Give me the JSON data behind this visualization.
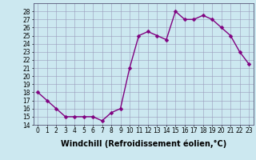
{
  "x": [
    0,
    1,
    2,
    3,
    4,
    5,
    6,
    7,
    8,
    9,
    10,
    11,
    12,
    13,
    14,
    15,
    16,
    17,
    18,
    19,
    20,
    21,
    22,
    23
  ],
  "y": [
    18,
    17,
    16,
    15,
    15,
    15,
    15,
    14.5,
    15.5,
    16,
    21,
    25,
    25.5,
    25,
    24.5,
    28,
    27,
    27,
    27.5,
    27,
    26,
    25,
    23,
    21.5
  ],
  "line_color": "#800080",
  "marker_color": "#800080",
  "bg_color": "#cce8f0",
  "grid_color": "#9999bb",
  "xlabel": "Windchill (Refroidissement éolien,°C)",
  "ylim": [
    14,
    29
  ],
  "xlim": [
    -0.5,
    23.5
  ],
  "yticks": [
    14,
    15,
    16,
    17,
    18,
    19,
    20,
    21,
    22,
    23,
    24,
    25,
    26,
    27,
    28
  ],
  "xticks": [
    0,
    1,
    2,
    3,
    4,
    5,
    6,
    7,
    8,
    9,
    10,
    11,
    12,
    13,
    14,
    15,
    16,
    17,
    18,
    19,
    20,
    21,
    22,
    23
  ],
  "xtick_labels": [
    "0",
    "1",
    "2",
    "3",
    "4",
    "5",
    "6",
    "7",
    "8",
    "9",
    "10",
    "11",
    "12",
    "13",
    "14",
    "15",
    "16",
    "17",
    "18",
    "19",
    "20",
    "21",
    "22",
    "23"
  ],
  "xlabel_fontsize": 7,
  "tick_fontsize": 5.5,
  "marker_size": 2.5,
  "line_width": 1.0
}
